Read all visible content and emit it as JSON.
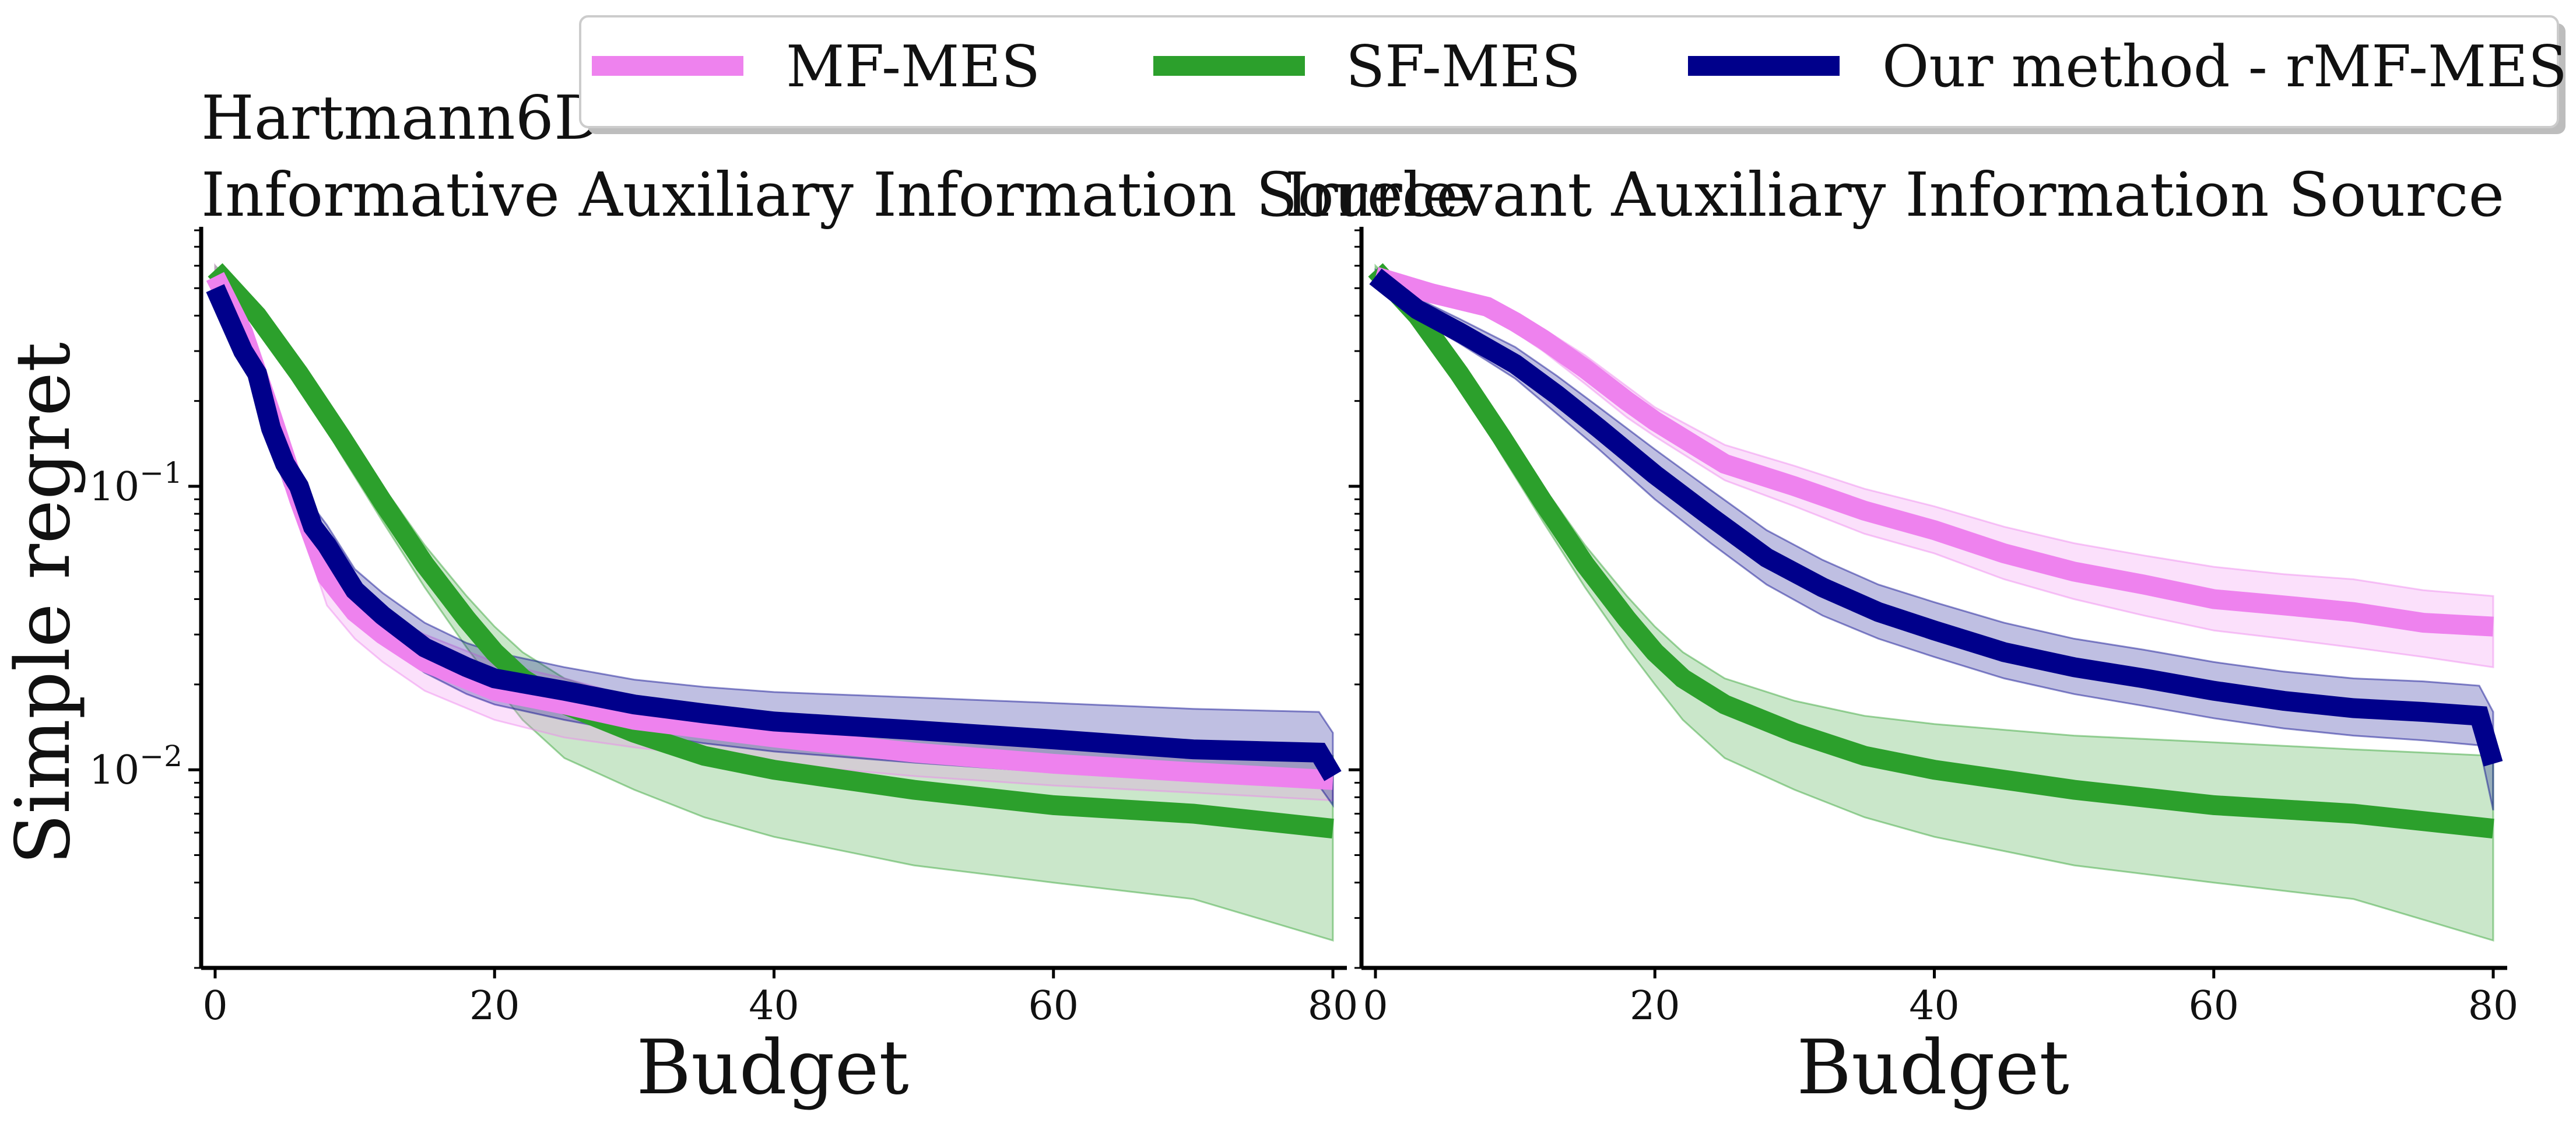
{
  "figure": {
    "suptitle": "Hartmann6D",
    "legend": [
      "MF-MES",
      "SF-MES",
      "Our method - rMF-MES"
    ]
  },
  "colors": {
    "MF-MES": "#ee82ee",
    "SF-MES": "#2ca02c",
    "Our method - rMF-MES": "#00008b"
  },
  "chart_data": [
    {
      "type": "line",
      "title": "Informative Auxiliary Information Source",
      "xlabel": "Budget",
      "ylabel": "Simple regret",
      "yscale": "log",
      "xlim": [
        -1,
        81
      ],
      "ylim": [
        0.002,
        0.8
      ],
      "xticks": [
        0,
        20,
        40,
        60,
        80
      ],
      "yticks": [
        0.01,
        0.1
      ],
      "ytick_labels": [
        "10^{-2}",
        "10^{-1}"
      ],
      "legend": "top-right",
      "series": [
        {
          "name": "MF-MES",
          "x": [
            0,
            2,
            4,
            6,
            8,
            10,
            12,
            15,
            20,
            25,
            30,
            40,
            50,
            60,
            70,
            80
          ],
          "y": [
            0.55,
            0.35,
            0.18,
            0.09,
            0.048,
            0.036,
            0.03,
            0.024,
            0.019,
            0.017,
            0.015,
            0.013,
            0.0115,
            0.0105,
            0.0098,
            0.0092
          ],
          "lower": [
            0.5,
            0.31,
            0.15,
            0.075,
            0.038,
            0.029,
            0.024,
            0.019,
            0.015,
            0.013,
            0.012,
            0.0105,
            0.0095,
            0.0088,
            0.0083,
            0.0078
          ],
          "upper": [
            0.6,
            0.4,
            0.21,
            0.1,
            0.058,
            0.043,
            0.036,
            0.03,
            0.024,
            0.021,
            0.018,
            0.0155,
            0.0138,
            0.0125,
            0.0118,
            0.011
          ]
        },
        {
          "name": "SF-MES",
          "x": [
            0,
            3,
            6,
            9,
            12,
            15,
            18,
            20,
            22,
            25,
            30,
            35,
            40,
            50,
            60,
            70,
            80
          ],
          "y": [
            0.58,
            0.4,
            0.25,
            0.15,
            0.088,
            0.053,
            0.034,
            0.026,
            0.021,
            0.017,
            0.0135,
            0.0112,
            0.01,
            0.0085,
            0.0075,
            0.007,
            0.0062
          ],
          "lower": [
            0.56,
            0.38,
            0.23,
            0.13,
            0.075,
            0.044,
            0.027,
            0.02,
            0.015,
            0.011,
            0.0085,
            0.0068,
            0.0058,
            0.0046,
            0.004,
            0.0035,
            0.0025
          ],
          "upper": [
            0.6,
            0.43,
            0.27,
            0.17,
            0.1,
            0.062,
            0.041,
            0.032,
            0.026,
            0.021,
            0.0175,
            0.0155,
            0.0145,
            0.0132,
            0.0125,
            0.0118,
            0.0112
          ]
        },
        {
          "name": "Our method - rMF-MES",
          "x": [
            0,
            2,
            3,
            4,
            5,
            6,
            7,
            8,
            10,
            12,
            15,
            18,
            20,
            25,
            30,
            35,
            40,
            50,
            60,
            70,
            79,
            80
          ],
          "y": [
            0.5,
            0.3,
            0.25,
            0.16,
            0.12,
            0.1,
            0.072,
            0.062,
            0.043,
            0.035,
            0.027,
            0.023,
            0.021,
            0.019,
            0.017,
            0.0158,
            0.0148,
            0.0138,
            0.0128,
            0.0118,
            0.0115,
            0.0095
          ],
          "lower": [
            0.47,
            0.27,
            0.22,
            0.14,
            0.1,
            0.085,
            0.06,
            0.052,
            0.035,
            0.028,
            0.022,
            0.0185,
            0.017,
            0.015,
            0.0135,
            0.0124,
            0.0116,
            0.0106,
            0.0098,
            0.0092,
            0.0088,
            0.0075
          ],
          "upper": [
            0.53,
            0.33,
            0.28,
            0.18,
            0.14,
            0.115,
            0.085,
            0.073,
            0.051,
            0.042,
            0.033,
            0.028,
            0.026,
            0.023,
            0.0208,
            0.0196,
            0.0188,
            0.018,
            0.0172,
            0.0164,
            0.016,
            0.0135
          ]
        }
      ]
    },
    {
      "type": "line",
      "title": "Irrelevant Auxiliary Information Source",
      "xlabel": "Budget",
      "ylabel": "",
      "yscale": "log",
      "xlim": [
        -1,
        81
      ],
      "ylim": [
        0.002,
        0.8
      ],
      "xticks": [
        0,
        20,
        40,
        60,
        80
      ],
      "yticks": [
        0.01,
        0.1
      ],
      "ytick_labels": [
        "",
        ""
      ],
      "series": [
        {
          "name": "MF-MES",
          "x": [
            0,
            4,
            8,
            10,
            12,
            15,
            18,
            20,
            25,
            30,
            35,
            40,
            45,
            50,
            55,
            60,
            65,
            70,
            75,
            80
          ],
          "y": [
            0.55,
            0.48,
            0.43,
            0.38,
            0.33,
            0.26,
            0.2,
            0.17,
            0.12,
            0.1,
            0.082,
            0.07,
            0.058,
            0.05,
            0.045,
            0.04,
            0.038,
            0.036,
            0.033,
            0.032
          ],
          "lower": [
            0.52,
            0.45,
            0.4,
            0.35,
            0.3,
            0.23,
            0.175,
            0.15,
            0.105,
            0.085,
            0.068,
            0.058,
            0.047,
            0.04,
            0.035,
            0.031,
            0.029,
            0.027,
            0.025,
            0.023
          ],
          "upper": [
            0.58,
            0.51,
            0.46,
            0.41,
            0.36,
            0.29,
            0.225,
            0.19,
            0.14,
            0.118,
            0.098,
            0.085,
            0.072,
            0.063,
            0.057,
            0.052,
            0.049,
            0.047,
            0.043,
            0.041
          ]
        },
        {
          "name": "SF-MES",
          "x": [
            0,
            3,
            6,
            9,
            12,
            15,
            18,
            20,
            22,
            25,
            30,
            35,
            40,
            50,
            60,
            70,
            80
          ],
          "y": [
            0.58,
            0.4,
            0.25,
            0.15,
            0.088,
            0.053,
            0.034,
            0.026,
            0.021,
            0.017,
            0.0135,
            0.0112,
            0.01,
            0.0085,
            0.0075,
            0.007,
            0.0062
          ],
          "lower": [
            0.56,
            0.38,
            0.23,
            0.13,
            0.075,
            0.044,
            0.027,
            0.02,
            0.015,
            0.011,
            0.0085,
            0.0068,
            0.0058,
            0.0046,
            0.004,
            0.0035,
            0.0025
          ],
          "upper": [
            0.6,
            0.43,
            0.27,
            0.17,
            0.1,
            0.062,
            0.041,
            0.032,
            0.026,
            0.021,
            0.0175,
            0.0155,
            0.0145,
            0.0132,
            0.0125,
            0.0118,
            0.0112
          ]
        },
        {
          "name": "Our method - rMF-MES",
          "x": [
            0,
            3,
            6,
            10,
            13,
            16,
            20,
            24,
            28,
            32,
            36,
            40,
            45,
            50,
            55,
            60,
            65,
            70,
            75,
            79,
            80
          ],
          "y": [
            0.55,
            0.42,
            0.35,
            0.27,
            0.21,
            0.16,
            0.11,
            0.078,
            0.056,
            0.044,
            0.036,
            0.031,
            0.026,
            0.023,
            0.021,
            0.019,
            0.0175,
            0.0165,
            0.016,
            0.0155,
            0.0105
          ],
          "lower": [
            0.53,
            0.39,
            0.32,
            0.24,
            0.18,
            0.135,
            0.09,
            0.063,
            0.045,
            0.035,
            0.029,
            0.025,
            0.021,
            0.0185,
            0.0168,
            0.0152,
            0.014,
            0.0132,
            0.0127,
            0.0122,
            0.0072
          ],
          "upper": [
            0.58,
            0.46,
            0.39,
            0.31,
            0.245,
            0.19,
            0.135,
            0.097,
            0.07,
            0.055,
            0.045,
            0.039,
            0.033,
            0.029,
            0.0265,
            0.024,
            0.0222,
            0.021,
            0.0205,
            0.0198,
            0.016
          ]
        }
      ]
    }
  ]
}
